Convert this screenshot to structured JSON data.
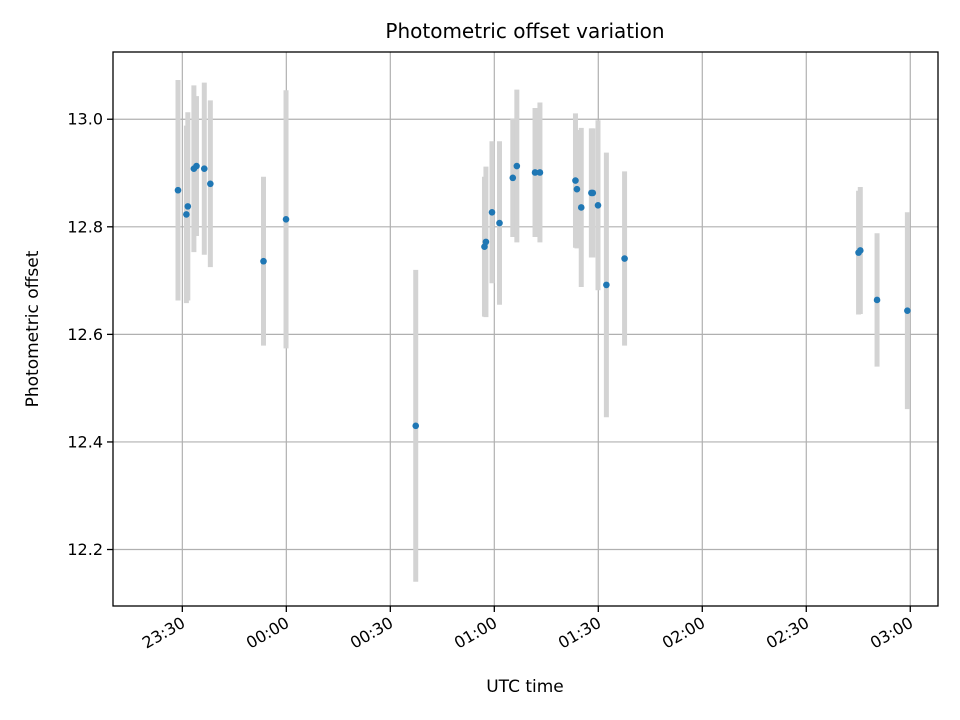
{
  "chart_data": {
    "type": "scatter",
    "title": "Photometric offset variation",
    "xlabel": "UTC time",
    "ylabel": "Photometric offset",
    "xlim": [
      "23:10",
      "03:08"
    ],
    "ylim": [
      12.095,
      13.125
    ],
    "x_ticks": [
      "23:30",
      "00:00",
      "00:30",
      "01:00",
      "01:30",
      "02:00",
      "02:30",
      "03:00"
    ],
    "y_ticks": [
      "12.2",
      "12.4",
      "12.6",
      "12.8",
      "13.0"
    ],
    "grid": true,
    "point_color": "#1f77b4",
    "errorbar_color": "#d3d3d3",
    "points": [
      {
        "x": "23:28:45",
        "y": 12.868,
        "yerr": 0.205
      },
      {
        "x": "23:31:10",
        "y": 12.823,
        "yerr": 0.165
      },
      {
        "x": "23:31:35",
        "y": 12.838,
        "yerr": 0.175
      },
      {
        "x": "23:33:20",
        "y": 12.908,
        "yerr": 0.155
      },
      {
        "x": "23:34:05",
        "y": 12.913,
        "yerr": 0.13
      },
      {
        "x": "23:36:20",
        "y": 12.908,
        "yerr": 0.16
      },
      {
        "x": "23:38:05",
        "y": 12.88,
        "yerr": 0.155
      },
      {
        "x": "23:53:25",
        "y": 12.736,
        "yerr": 0.157
      },
      {
        "x": "23:59:55",
        "y": 12.814,
        "yerr": 0.24
      },
      {
        "x": "00:37:20",
        "y": 12.43,
        "yerr": 0.29
      },
      {
        "x": "00:57:10",
        "y": 12.763,
        "yerr": 0.13
      },
      {
        "x": "00:57:35",
        "y": 12.772,
        "yerr": 0.14
      },
      {
        "x": "00:59:20",
        "y": 12.827,
        "yerr": 0.132
      },
      {
        "x": "01:01:30",
        "y": 12.807,
        "yerr": 0.152
      },
      {
        "x": "01:05:20",
        "y": 12.891,
        "yerr": 0.11
      },
      {
        "x": "01:06:30",
        "y": 12.913,
        "yerr": 0.142
      },
      {
        "x": "01:11:45",
        "y": 12.901,
        "yerr": 0.12
      },
      {
        "x": "01:13:10",
        "y": 12.901,
        "yerr": 0.13
      },
      {
        "x": "01:23:25",
        "y": 12.886,
        "yerr": 0.125
      },
      {
        "x": "01:23:50",
        "y": 12.87,
        "yerr": 0.11
      },
      {
        "x": "01:25:05",
        "y": 12.836,
        "yerr": 0.148
      },
      {
        "x": "01:28:00",
        "y": 12.863,
        "yerr": 0.12
      },
      {
        "x": "01:28:25",
        "y": 12.863,
        "yerr": 0.12
      },
      {
        "x": "01:29:55",
        "y": 12.84,
        "yerr": 0.158
      },
      {
        "x": "01:32:20",
        "y": 12.692,
        "yerr": 0.246
      },
      {
        "x": "01:37:35",
        "y": 12.741,
        "yerr": 0.162
      },
      {
        "x": "02:45:05",
        "y": 12.752,
        "yerr": 0.115
      },
      {
        "x": "02:45:35",
        "y": 12.756,
        "yerr": 0.118
      },
      {
        "x": "02:50:25",
        "y": 12.664,
        "yerr": 0.124
      },
      {
        "x": "02:59:10",
        "y": 12.644,
        "yerr": 0.183
      }
    ]
  }
}
